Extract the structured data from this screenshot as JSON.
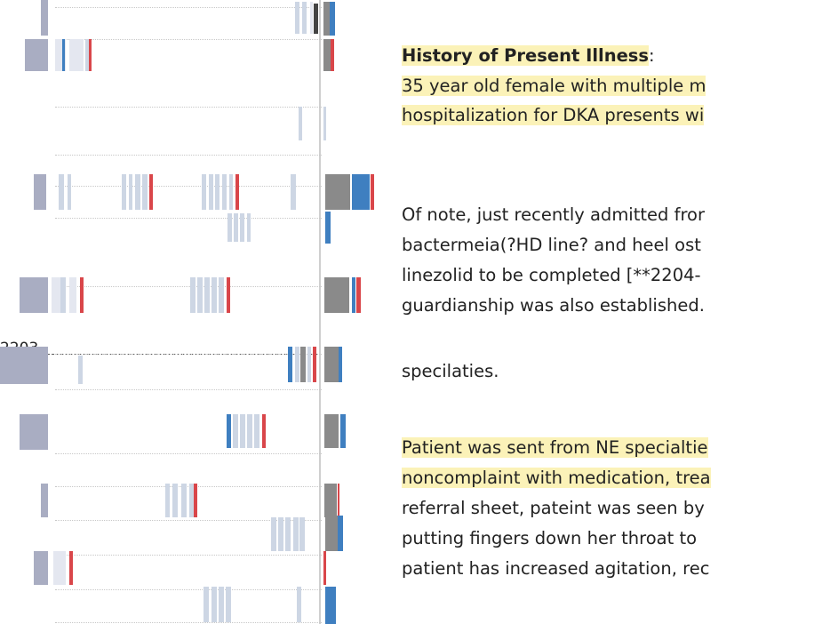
{
  "timeline": {
    "date_label": "2203",
    "colors": {
      "summary_bar": "#a9adc2",
      "mark_light": "#cdd6e4",
      "mark_pale": "#e4e7f0",
      "mark_blue": "#3f7fc0",
      "mark_red": "#d9464a",
      "mark_gray": "#8a8a8a",
      "mark_dark": "#444444"
    }
  },
  "note": {
    "heading": "History of Present Illness",
    "heading_colon": ":",
    "lines": [
      "35 year old female with multiple m",
      "hospitalization for DKA presents wi",
      "Of note, just recently admitted fror",
      "bactermeia(?HD line? and heel ost",
      "linezolid to be completed [**2204-",
      "guardianship was also established.",
      "specilaties.",
      "Patient was sent from NE specialtie",
      "noncomplaint with medication, trea",
      "referral sheet, pateint was seen by",
      "putting fingers down her throat to",
      "patient has increased agitation, rec"
    ]
  }
}
